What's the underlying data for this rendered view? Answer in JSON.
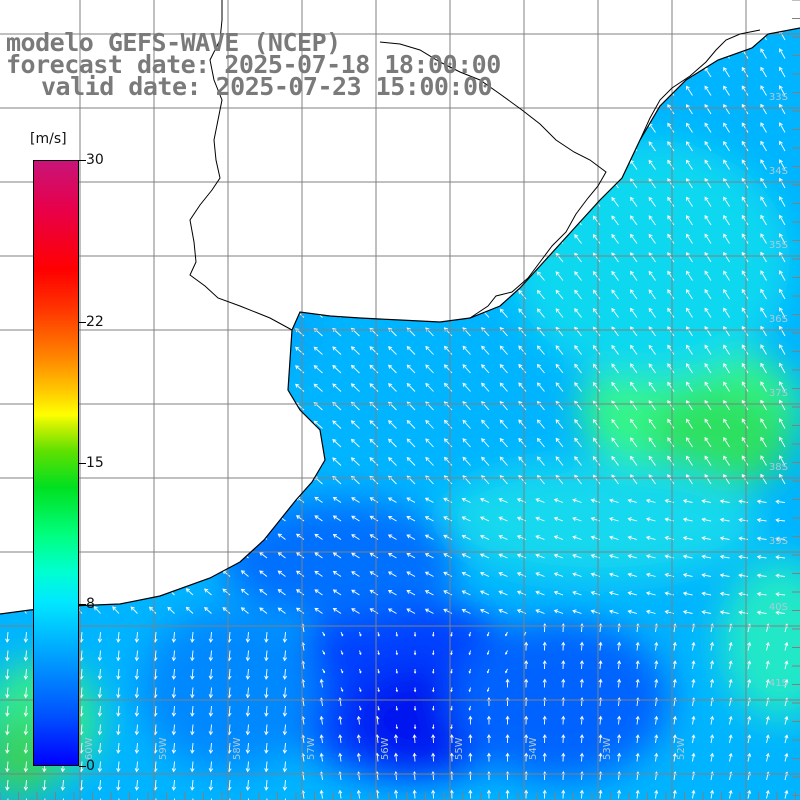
{
  "title": {
    "line1": "modelo GEFS-WAVE (NCEP)",
    "line2": "forecast date: 2025-07-18 18:00:00",
    "line3": "valid date: 2025-07-23 15:00:00"
  },
  "colorbar": {
    "unit": "[m/s]",
    "ticks": [
      "30",
      "22",
      "15",
      "8",
      "0"
    ],
    "range": [
      0,
      30
    ]
  },
  "map_labels": {
    "lat_labels": [
      "33S",
      "34S",
      "35S",
      "36S",
      "37S",
      "38S",
      "39S",
      "40S",
      "41S"
    ],
    "lon_labels": [
      "60W",
      "59W",
      "58W",
      "57W",
      "56W",
      "55W",
      "54W",
      "53W",
      "52W"
    ]
  },
  "colors": {
    "coast": "#000000",
    "grid": "#808080",
    "arrow": "#ffffff",
    "title": "#7a7a7a"
  }
}
